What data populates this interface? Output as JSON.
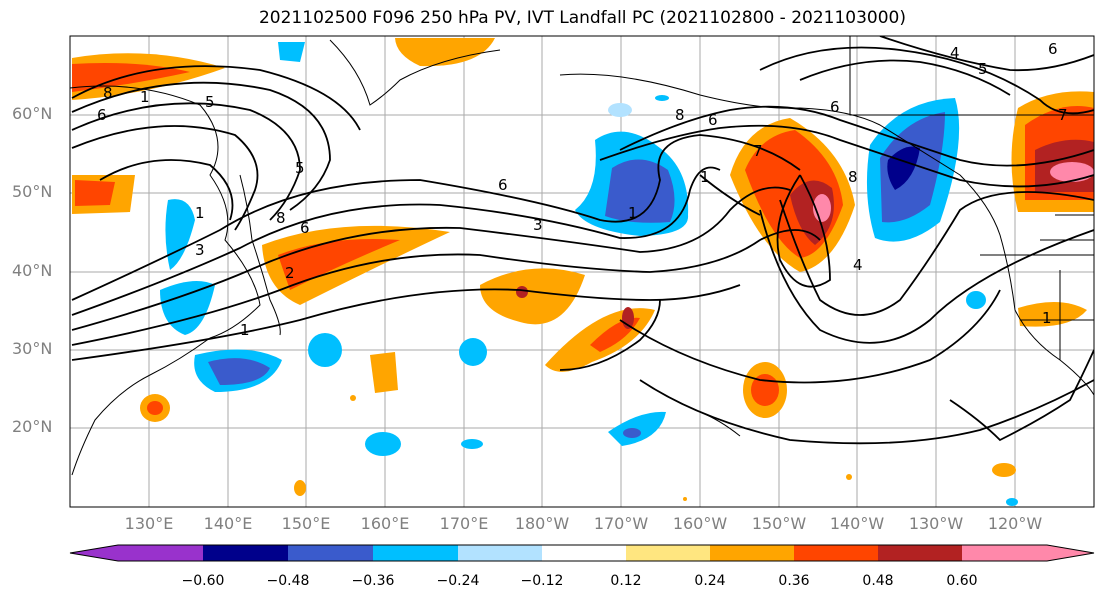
{
  "title": "2021102500 F096 250 hPa PV, IVT Landfall PC (2021102800 - 2021103000)",
  "lat_labels": [
    "60°N",
    "50°N",
    "40°N",
    "30°N",
    "20°N"
  ],
  "lon_labels": [
    "130°E",
    "140°E",
    "150°E",
    "160°E",
    "170°E",
    "180°W",
    "170°W",
    "160°W",
    "150°W",
    "140°W",
    "130°W",
    "120°W"
  ],
  "colorbar": {
    "tick_labels": [
      "−0.60",
      "−0.48",
      "−0.36",
      "−0.24",
      "−0.12",
      "0.12",
      "0.24",
      "0.36",
      "0.48",
      "0.60"
    ],
    "colors": [
      "#9932cc",
      "#00008b",
      "#3a5bcc",
      "#00bfff",
      "#b2e2ff",
      "#ffffff",
      "#ffe680",
      "#ffa500",
      "#ff4500",
      "#b22222",
      "#ff88aa"
    ]
  },
  "contour_labels": [
    "8",
    "1",
    "5",
    "6",
    "5",
    "8",
    "6",
    "1",
    "3",
    "1",
    "2",
    "6",
    "8",
    "6",
    "3",
    "1",
    "6",
    "7",
    "8",
    "4",
    "1",
    "4",
    "5",
    "6",
    "7",
    "1"
  ]
}
